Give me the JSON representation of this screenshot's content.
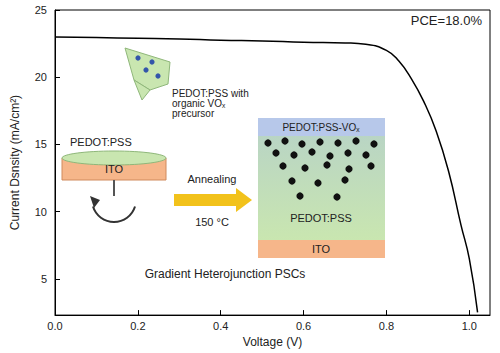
{
  "chart_data": {
    "type": "line",
    "x": [
      0,
      0.1,
      0.2,
      0.3,
      0.4,
      0.5,
      0.6,
      0.7,
      0.75,
      0.8,
      0.83,
      0.86,
      0.89,
      0.92,
      0.95,
      0.98,
      1.0,
      1.02
    ],
    "values": [
      23.0,
      22.95,
      22.9,
      22.85,
      22.75,
      22.7,
      22.6,
      22.55,
      22.45,
      22.0,
      21.2,
      19.9,
      18.2,
      16.0,
      13.0,
      9.0,
      6.5,
      2.5
    ],
    "color": "#000000",
    "xlabel": "Voltage (V)",
    "ylabel": "Current Dsnsity (mA/cm²)",
    "xlim": [
      0,
      1.05
    ],
    "xticks": [
      {
        "value": 0,
        "label": "0.0"
      },
      0.2,
      0.4,
      0.6,
      0.8,
      {
        "value": 1,
        "label": "1.0"
      }
    ],
    "ylim": [
      2.3,
      25
    ],
    "yticks": [
      5,
      10,
      15,
      20,
      25
    ],
    "grid": false,
    "annotations": [
      "PCE=18.0%",
      "PEDOT:PSS with organic VOₓ precursor",
      "PEDOT:PSS",
      "ITO",
      "Annealing",
      "150 °C",
      "PEDOT:PSS-VOₓ",
      "PEDOT:PSS",
      "ITO",
      "Gradient Heterojunction PSCs"
    ]
  }
}
